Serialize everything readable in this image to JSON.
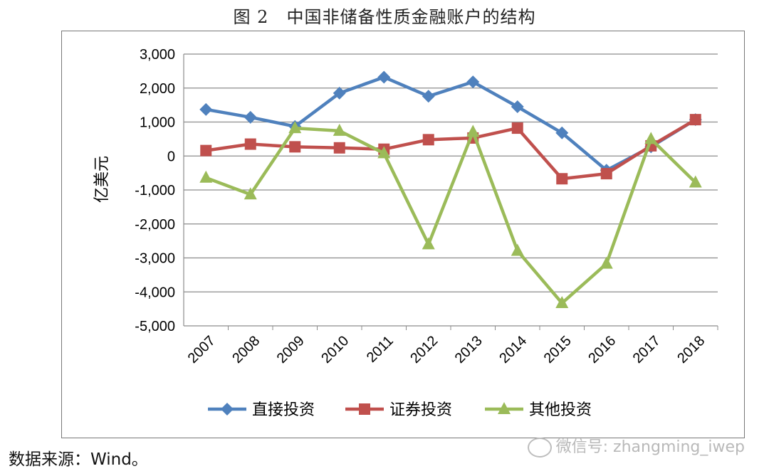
{
  "figure": {
    "title": "图 2　中国非储备性质金融账户的结构",
    "source": "数据来源：Wind。",
    "watermark": "微信号: zhangming_iwep"
  },
  "chart_data": {
    "type": "line",
    "categories": [
      "2007",
      "2008",
      "2009",
      "2010",
      "2011",
      "2012",
      "2013",
      "2014",
      "2015",
      "2016",
      "2017",
      "2018"
    ],
    "ylabel": "亿美元",
    "xlabel": "",
    "ylim": [
      -5000,
      3000
    ],
    "yticks": [
      3000,
      2000,
      1000,
      0,
      -1000,
      -2000,
      -3000,
      -4000,
      -5000
    ],
    "ytick_labels": [
      "3,000",
      "2,000",
      "1,000",
      "0",
      "-1,000",
      "-2,000",
      "-3,000",
      "-4,000",
      "-5,000"
    ],
    "grid": true,
    "legend_position": "bottom",
    "series": [
      {
        "name": "直接投资",
        "color": "#4f81bd",
        "marker": "diamond",
        "values": [
          1370,
          1140,
          870,
          1850,
          2320,
          1760,
          2180,
          1450,
          680,
          -420,
          270,
          1070
        ]
      },
      {
        "name": "证券投资",
        "color": "#c0504d",
        "marker": "square",
        "values": [
          160,
          350,
          270,
          240,
          200,
          480,
          530,
          820,
          -670,
          -520,
          300,
          1070
        ]
      },
      {
        "name": "其他投资",
        "color": "#9bbb59",
        "marker": "triangle",
        "values": [
          -640,
          -1130,
          820,
          740,
          80,
          -2600,
          710,
          -2790,
          -4330,
          -3170,
          500,
          -780
        ]
      }
    ]
  }
}
